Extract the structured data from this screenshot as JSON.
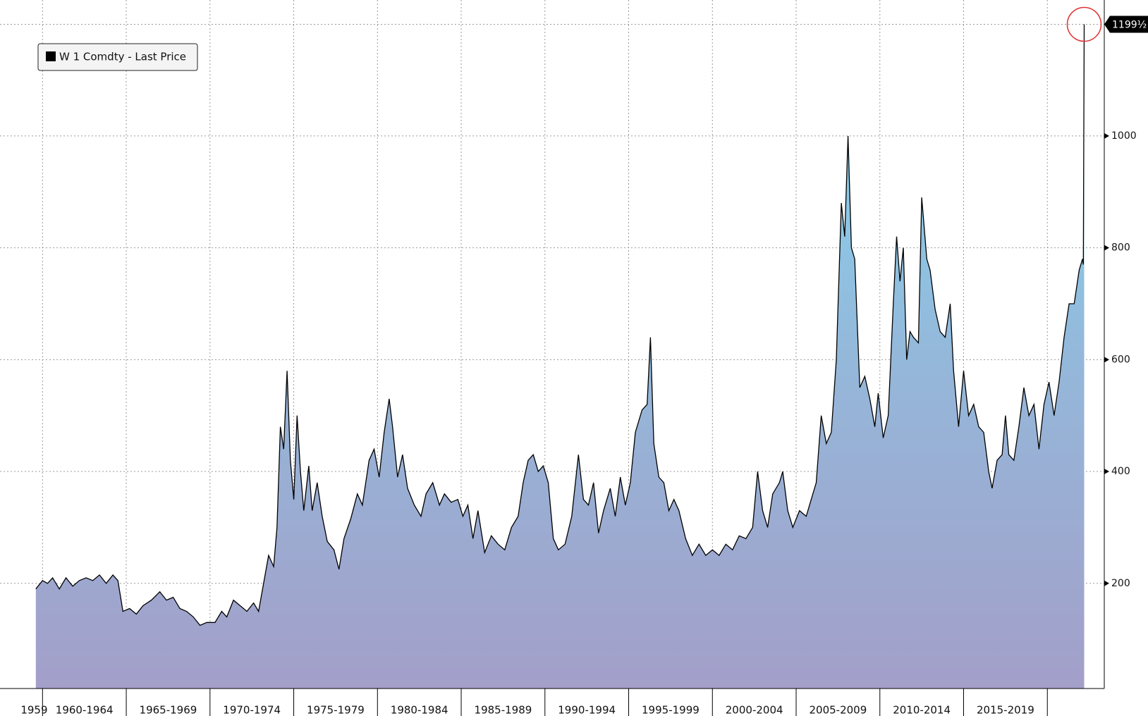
{
  "chart_data": {
    "type": "area",
    "x": [
      1959.6,
      1960.0,
      1960.3,
      1960.6,
      1961.0,
      1961.4,
      1961.8,
      1962.2,
      1962.6,
      1963.0,
      1963.4,
      1963.8,
      1964.2,
      1964.5,
      1964.8,
      1965.2,
      1965.6,
      1966.0,
      1966.5,
      1967.0,
      1967.4,
      1967.8,
      1968.2,
      1968.6,
      1969.0,
      1969.4,
      1969.8,
      1970.3,
      1970.7,
      1971.0,
      1971.4,
      1971.8,
      1972.2,
      1972.6,
      1972.9,
      1973.2,
      1973.5,
      1973.8,
      1974.0,
      1974.2,
      1974.4,
      1974.6,
      1974.8,
      1975.0,
      1975.2,
      1975.4,
      1975.6,
      1975.9,
      1976.1,
      1976.4,
      1976.7,
      1977.0,
      1977.4,
      1977.7,
      1978.0,
      1978.4,
      1978.8,
      1979.1,
      1979.5,
      1979.8,
      1980.1,
      1980.4,
      1980.7,
      1980.9,
      1981.2,
      1981.5,
      1981.8,
      1982.2,
      1982.6,
      1982.9,
      1983.3,
      1983.7,
      1984.0,
      1984.4,
      1984.8,
      1985.1,
      1985.4,
      1985.7,
      1986.0,
      1986.4,
      1986.8,
      1987.2,
      1987.6,
      1988.0,
      1988.4,
      1988.7,
      1989.0,
      1989.3,
      1989.6,
      1989.9,
      1990.2,
      1990.5,
      1990.8,
      1991.2,
      1991.6,
      1992.0,
      1992.3,
      1992.6,
      1992.9,
      1993.2,
      1993.5,
      1993.9,
      1994.2,
      1994.5,
      1994.8,
      1995.1,
      1995.4,
      1995.8,
      1996.1,
      1996.3,
      1996.5,
      1996.8,
      1997.1,
      1997.4,
      1997.7,
      1998.0,
      1998.4,
      1998.8,
      1999.2,
      1999.6,
      2000.0,
      2000.4,
      2000.8,
      2001.2,
      2001.6,
      2002.0,
      2002.4,
      2002.7,
      2003.0,
      2003.3,
      2003.6,
      2004.0,
      2004.2,
      2004.5,
      2004.8,
      2005.2,
      2005.6,
      2005.9,
      2006.2,
      2006.5,
      2006.8,
      2007.1,
      2007.4,
      2007.7,
      2007.9,
      2008.1,
      2008.3,
      2008.5,
      2008.8,
      2009.1,
      2009.4,
      2009.7,
      2009.9,
      2010.2,
      2010.5,
      2010.8,
      2011.0,
      2011.2,
      2011.4,
      2011.6,
      2011.8,
      2012.0,
      2012.3,
      2012.5,
      2012.8,
      2013.0,
      2013.3,
      2013.6,
      2013.9,
      2014.2,
      2014.4,
      2014.7,
      2015.0,
      2015.3,
      2015.6,
      2015.9,
      2016.2,
      2016.5,
      2016.7,
      2017.0,
      2017.3,
      2017.5,
      2017.7,
      2018.0,
      2018.3,
      2018.6,
      2018.9,
      2019.2,
      2019.5,
      2019.8,
      2020.1,
      2020.4,
      2020.7,
      2021.0,
      2021.3,
      2021.6,
      2021.9,
      2022.1,
      2022.15,
      2022.2
    ],
    "series": [
      {
        "name": "W 1 Comdty - Last Price",
        "color": "#000000",
        "values": [
          190,
          205,
          200,
          210,
          190,
          210,
          195,
          205,
          210,
          205,
          215,
          200,
          215,
          205,
          150,
          155,
          145,
          160,
          170,
          185,
          170,
          175,
          155,
          150,
          140,
          125,
          130,
          130,
          150,
          140,
          170,
          160,
          150,
          165,
          150,
          200,
          250,
          230,
          300,
          480,
          440,
          580,
          420,
          350,
          500,
          400,
          330,
          410,
          330,
          380,
          320,
          275,
          260,
          225,
          280,
          315,
          360,
          340,
          420,
          440,
          390,
          470,
          530,
          480,
          390,
          430,
          370,
          340,
          320,
          360,
          380,
          340,
          360,
          345,
          350,
          320,
          340,
          280,
          330,
          255,
          285,
          270,
          260,
          300,
          320,
          380,
          420,
          430,
          400,
          410,
          380,
          280,
          260,
          270,
          320,
          430,
          350,
          340,
          380,
          290,
          330,
          370,
          320,
          390,
          340,
          380,
          470,
          510,
          520,
          640,
          450,
          390,
          380,
          330,
          350,
          330,
          280,
          250,
          270,
          250,
          260,
          250,
          270,
          260,
          285,
          280,
          300,
          400,
          330,
          300,
          360,
          380,
          400,
          330,
          300,
          330,
          320,
          350,
          380,
          500,
          450,
          470,
          600,
          880,
          820,
          1000,
          800,
          780,
          550,
          570,
          530,
          480,
          540,
          460,
          500,
          700,
          820,
          740,
          800,
          600,
          650,
          640,
          630,
          890,
          780,
          760,
          690,
          650,
          640,
          700,
          580,
          480,
          580,
          500,
          520,
          480,
          470,
          400,
          370,
          420,
          430,
          500,
          430,
          420,
          480,
          550,
          500,
          520,
          440,
          520,
          560,
          500,
          560,
          640,
          700,
          700,
          760,
          780,
          770,
          1199.5
        ]
      }
    ],
    "xlim": [
      1957.46,
      2023.4
    ],
    "ylim": [
      12,
      1243
    ],
    "yticks": [
      200,
      400,
      600,
      800,
      1000
    ],
    "xticks": [
      1960,
      1965,
      1970,
      1975,
      1980,
      1985,
      1990,
      1995,
      2000,
      2005,
      2010,
      2015,
      2020
    ],
    "x_periods": [
      {
        "label": "1959",
        "from": 1959,
        "to": 1960
      },
      {
        "label": "1960-1964",
        "from": 1960,
        "to": 1965
      },
      {
        "label": "1965-1969",
        "from": 1965,
        "to": 1970
      },
      {
        "label": "1970-1974",
        "from": 1970,
        "to": 1975
      },
      {
        "label": "1975-1979",
        "from": 1975,
        "to": 1980
      },
      {
        "label": "1980-1984",
        "from": 1980,
        "to": 1985
      },
      {
        "label": "1985-1989",
        "from": 1985,
        "to": 1990
      },
      {
        "label": "1990-1994",
        "from": 1990,
        "to": 1995
      },
      {
        "label": "1995-1999",
        "from": 1995,
        "to": 2000
      },
      {
        "label": "2000-2004",
        "from": 2000,
        "to": 2005
      },
      {
        "label": "2005-2009",
        "from": 2005,
        "to": 2010
      },
      {
        "label": "2010-2014",
        "from": 2010,
        "to": 2015
      },
      {
        "label": "2015-2019",
        "from": 2015,
        "to": 2020
      }
    ],
    "last_price": {
      "value": 1199.5,
      "label": "1199½"
    },
    "grid": true
  }
}
